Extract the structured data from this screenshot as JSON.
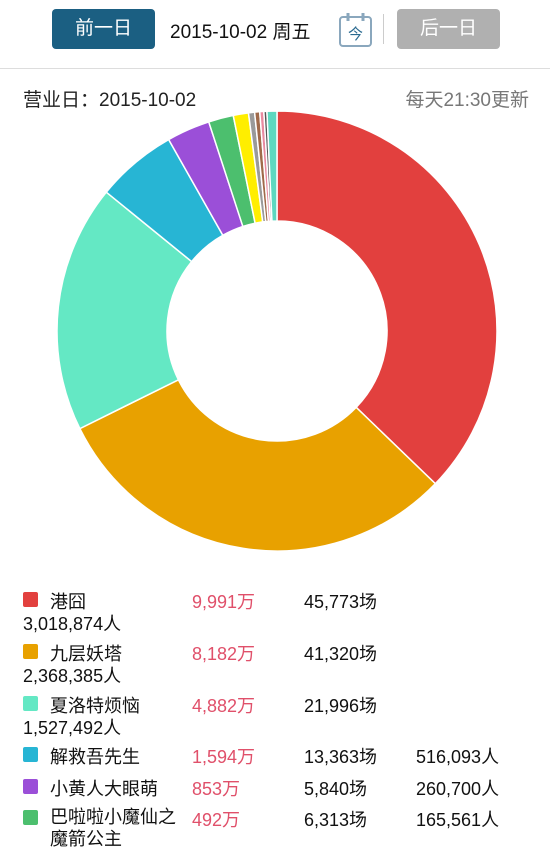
{
  "header": {
    "prev_button": "前一日",
    "date": "2015-10-02 周五",
    "today_icon": "今",
    "next_button": "后一日"
  },
  "info": {
    "business_day": "营业日：2015-10-02",
    "update_note": "每天21:30更新"
  },
  "chart_data": {
    "type": "pie",
    "donut": true,
    "categories": [
      "港囧",
      "九层妖塔",
      "夏洛特烦恼",
      "解救吾先生",
      "小黄人大眼萌",
      "巴啦啦小魔仙之魔箭公主",
      null,
      null,
      null,
      null,
      null,
      null
    ],
    "values": [
      9991,
      8182,
      4882,
      1594,
      853,
      492,
      300,
      120,
      100,
      80,
      60,
      196
    ],
    "value_labels": [
      "9,991万",
      "8,182万",
      "4,882万",
      "1,594万",
      "853万",
      "492万",
      null,
      null,
      null,
      null,
      null,
      null
    ],
    "colors": [
      "#e2403e",
      "#e8a100",
      "#64e8c4",
      "#27b5d4",
      "#9b4fd8",
      "#4cbf6e",
      "#ffee00",
      "#9a9a9a",
      "#a06a4a",
      "#e88aa0",
      "#555555",
      "#5ed8c0"
    ]
  },
  "list": [
    {
      "shows": "45,773场",
      "audience": "3,018,874人"
    },
    {
      "shows": "41,320场",
      "audience": "2,368,385人"
    },
    {
      "shows": "21,996场",
      "audience": "1,527,492人"
    },
    {
      "shows": "13,363场",
      "audience": "516,093人"
    },
    {
      "shows": "5,840场",
      "audience": "260,700人"
    },
    {
      "shows": "6,313场",
      "audience": "165,561人"
    }
  ]
}
